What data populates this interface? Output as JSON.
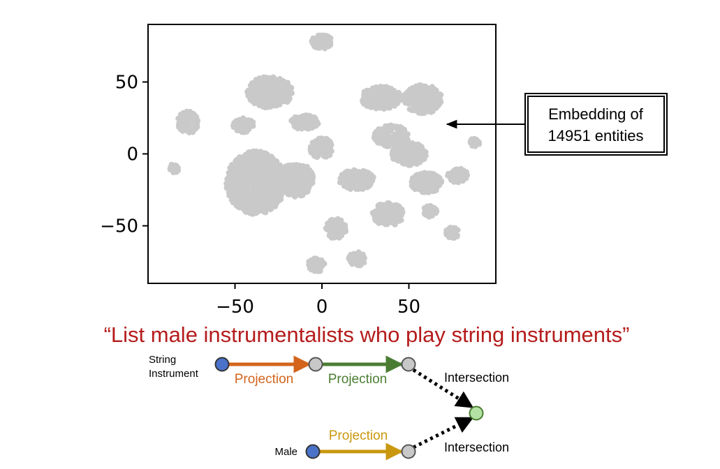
{
  "chart_data": {
    "type": "scatter",
    "xticks": [
      "−50",
      "0",
      "50"
    ],
    "yticks": [
      "50",
      "0",
      "−50"
    ],
    "xlim": [
      -100,
      100
    ],
    "ylim": [
      -90,
      90
    ],
    "grid": false,
    "clusters": [
      {
        "x": 0,
        "y": 78,
        "rx": 6,
        "ry": 5
      },
      {
        "x": -30,
        "y": 43,
        "rx": 13,
        "ry": 11
      },
      {
        "x": 34,
        "y": 39,
        "rx": 12,
        "ry": 8
      },
      {
        "x": 58,
        "y": 38,
        "rx": 11,
        "ry": 10
      },
      {
        "x": -77,
        "y": 22,
        "rx": 6,
        "ry": 8
      },
      {
        "x": -45,
        "y": 20,
        "rx": 6,
        "ry": 5
      },
      {
        "x": -10,
        "y": 22,
        "rx": 8,
        "ry": 5
      },
      {
        "x": 40,
        "y": 12,
        "rx": 10,
        "ry": 8
      },
      {
        "x": 0,
        "y": 4,
        "rx": 7,
        "ry": 7
      },
      {
        "x": -38,
        "y": -20,
        "rx": 17,
        "ry": 22
      },
      {
        "x": -15,
        "y": -18,
        "rx": 10,
        "ry": 12
      },
      {
        "x": 20,
        "y": -18,
        "rx": 10,
        "ry": 7
      },
      {
        "x": 50,
        "y": 0,
        "rx": 10,
        "ry": 8
      },
      {
        "x": 60,
        "y": -20,
        "rx": 9,
        "ry": 7
      },
      {
        "x": 38,
        "y": -42,
        "rx": 9,
        "ry": 8
      },
      {
        "x": 8,
        "y": -52,
        "rx": 6,
        "ry": 7
      },
      {
        "x": -3,
        "y": -77,
        "rx": 5,
        "ry": 5
      },
      {
        "x": 20,
        "y": -73,
        "rx": 5,
        "ry": 5
      },
      {
        "x": -85,
        "y": -10,
        "rx": 3,
        "ry": 3
      },
      {
        "x": 78,
        "y": -15,
        "rx": 6,
        "ry": 5
      },
      {
        "x": 75,
        "y": -55,
        "rx": 4,
        "ry": 4
      },
      {
        "x": 88,
        "y": 8,
        "rx": 3,
        "ry": 3
      },
      {
        "x": 62,
        "y": -40,
        "rx": 4,
        "ry": 4
      }
    ]
  },
  "annotation": {
    "line1": "Embedding of",
    "line2": "14951 entities"
  },
  "query": "“List male instrumentalists who play string instruments”",
  "graph": {
    "anchor1_line1": "String",
    "anchor1_line2": "Instrument",
    "anchor2": "Male",
    "proj1": "Projection",
    "proj2": "Projection",
    "proj3": "Projection",
    "intersect1": "Intersection",
    "intersect2": "Intersection",
    "colors": {
      "orange": "#d4641c",
      "green": "#4a7d32",
      "gold": "#c9980e",
      "red": "#b51c1c",
      "anchor": "#4a72c8",
      "answer": "#b3e2a4",
      "mid": "#c8c8c8"
    }
  }
}
